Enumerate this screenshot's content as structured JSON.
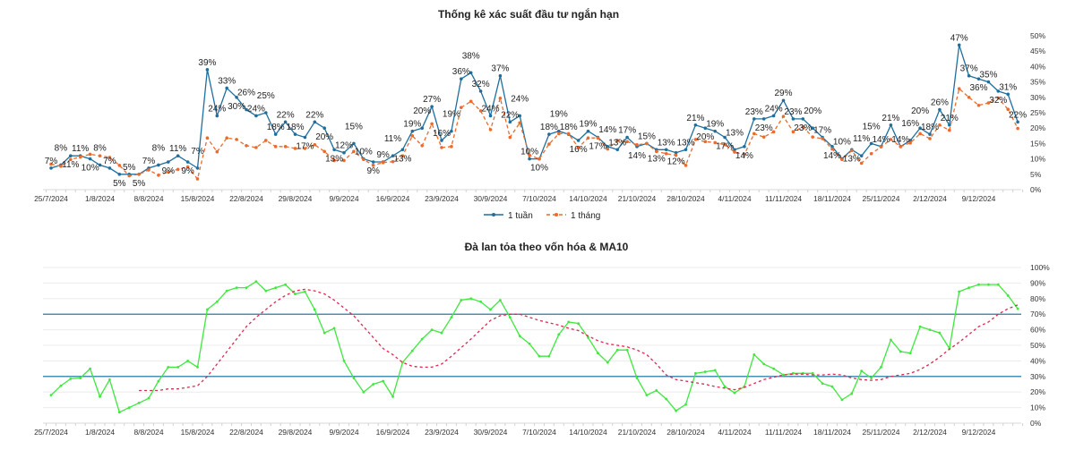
{
  "chart_data": [
    {
      "type": "line",
      "title": "Thống kê xác suất đầu tư ngắn hạn",
      "xlabel": "",
      "ylabel": "",
      "ylim": [
        0,
        50
      ],
      "yticks": [
        "0%",
        "5%",
        "10%",
        "15%",
        "20%",
        "25%",
        "30%",
        "35%",
        "40%",
        "45%",
        "50%"
      ],
      "x_tick_labels": [
        "25/7/2024",
        "1/8/2024",
        "8/8/2024",
        "15/8/2024",
        "22/8/2024",
        "29/8/2024",
        "9/9/2024",
        "16/9/2024",
        "23/9/2024",
        "30/9/2024",
        "7/10/2024",
        "14/10/2024",
        "21/10/2024",
        "28/10/2024",
        "4/11/2024",
        "11/11/2024",
        "18/11/2024",
        "25/11/2024",
        "2/12/2024",
        "9/12/2024"
      ],
      "x_tick_every": 5,
      "legend_position": "bottom",
      "series": [
        {
          "name": "1 tuần",
          "color": "#1f6f9e",
          "data_labels": true,
          "values": [
            7,
            8,
            11,
            11,
            10,
            8,
            7,
            5,
            5,
            5,
            7,
            8,
            9,
            11,
            9,
            7,
            39,
            24,
            33,
            30,
            26,
            24,
            25,
            18,
            22,
            18,
            17,
            22,
            20,
            13,
            12,
            15,
            10,
            9,
            9,
            11,
            13,
            19,
            20,
            27,
            16,
            19,
            36,
            38,
            32,
            24,
            37,
            22,
            24,
            10,
            10,
            18,
            19,
            18,
            16,
            19,
            17,
            14,
            13,
            17,
            14,
            15,
            13,
            13,
            12,
            13,
            21,
            20,
            19,
            17,
            13,
            14,
            23,
            23,
            24,
            29,
            23,
            23,
            20,
            17,
            14,
            10,
            13,
            11,
            15,
            14,
            21,
            14,
            16,
            20,
            18,
            26,
            21,
            47,
            37,
            36,
            35,
            32,
            31,
            22
          ]
        },
        {
          "name": "1 tháng",
          "color": "#ec6a2c",
          "dashed": true,
          "values": [
            8.3,
            7.6,
            9.8,
            10.6,
            11.5,
            11,
            10.5,
            7.9,
            4.5,
            5,
            6.4,
            4.7,
            5.7,
            6.6,
            7.4,
            3.5,
            16.8,
            12.3,
            16.8,
            16.3,
            14.3,
            13.7,
            16,
            14,
            14,
            13.4,
            13.4,
            14.6,
            12.4,
            9.5,
            9.5,
            12.4,
            9.8,
            7.9,
            8.8,
            9.1,
            11,
            17.5,
            14.3,
            21.4,
            13.7,
            14,
            26.7,
            28.7,
            25.6,
            19.5,
            29.7,
            17,
            21.7,
            11.2,
            10,
            14.8,
            18.2,
            18.2,
            13.7,
            16.8,
            16.8,
            13.2,
            16,
            15.6,
            14.6,
            15,
            12.4,
            11.7,
            11.2,
            7.9,
            16.3,
            15.6,
            15.3,
            14.6,
            12.2,
            11.4,
            18.2,
            17.1,
            18.8,
            23.8,
            18.8,
            20.4,
            17.1,
            16.6,
            13.2,
            9.8,
            12.7,
            8.6,
            11.7,
            13.9,
            16.3,
            14,
            15.2,
            18.2,
            16.6,
            21,
            19.3,
            32.8,
            30,
            27.4,
            28.2,
            29.8,
            26.1,
            19.9
          ]
        }
      ]
    },
    {
      "type": "line",
      "title": "Đà lan tỏa theo vốn hóa & MA10",
      "xlabel": "",
      "ylabel": "",
      "ylim": [
        0,
        100
      ],
      "grid": true,
      "yticks": [
        "0%",
        "10%",
        "20%",
        "30%",
        "40%",
        "50%",
        "60%",
        "70%",
        "80%",
        "90%",
        "100%"
      ],
      "x_tick_labels": [
        "25/7/2024",
        "1/8/2024",
        "8/8/2024",
        "15/8/2024",
        "22/8/2024",
        "29/8/2024",
        "9/9/2024",
        "16/9/2024",
        "23/9/2024",
        "30/9/2024",
        "7/10/2024",
        "14/10/2024",
        "21/10/2024",
        "28/10/2024",
        "4/11/2024",
        "11/11/2024",
        "18/11/2024",
        "25/11/2024",
        "2/12/2024",
        "9/12/2024"
      ],
      "x_tick_every": 5,
      "reference_lines": [
        30,
        70
      ],
      "reference_color": "#4a8fb3",
      "series": [
        {
          "name": "Đà lan tỏa",
          "color": "#3ee83e",
          "values": [
            18,
            24,
            28.5,
            29,
            35,
            17,
            28,
            7,
            10,
            13,
            16,
            27,
            36,
            36,
            40,
            36,
            73,
            78,
            85,
            87,
            87,
            91,
            85,
            87,
            89,
            83,
            84.5,
            73,
            58,
            61,
            40,
            29,
            20,
            25,
            27,
            17,
            39,
            46.5,
            54,
            60,
            58,
            68,
            79,
            80,
            78,
            73,
            79,
            68,
            56,
            51,
            43,
            43,
            57,
            65,
            64,
            55,
            45,
            39,
            47,
            47,
            29,
            18,
            21,
            15.5,
            8,
            12,
            32,
            33,
            34,
            23.5,
            19.5,
            23.5,
            44,
            38,
            35,
            31,
            32,
            32,
            32,
            25.5,
            23.5,
            15,
            19,
            33.5,
            29,
            36,
            53.5,
            46,
            45,
            62,
            60,
            58,
            48,
            84.5,
            87,
            89,
            89,
            89,
            82,
            73.5
          ]
        },
        {
          "name": "MA10",
          "color": "#e0264e",
          "dashed": true,
          "start_index": 9,
          "values": [
            21,
            21,
            21,
            22,
            22,
            23,
            24,
            30,
            38,
            46,
            54,
            62,
            68,
            73,
            78,
            82,
            85,
            86,
            85,
            83,
            79,
            74,
            69,
            62,
            55,
            48,
            44,
            39,
            36.5,
            36,
            36,
            38,
            43,
            48.5,
            54,
            60,
            66,
            69,
            70,
            70,
            68,
            66,
            64.5,
            63,
            61,
            59.5,
            56,
            53,
            51,
            50,
            49,
            47,
            44,
            38,
            31,
            28,
            27,
            26,
            25,
            23.5,
            22.5,
            21.5,
            23,
            25.5,
            28,
            29.5,
            31,
            31.5,
            31.5,
            31,
            31,
            31.5,
            31,
            29,
            28,
            27.5,
            28,
            30,
            31,
            32,
            34.5,
            38,
            42.5,
            47.5,
            52,
            57,
            62,
            65,
            70,
            73.5,
            76
          ]
        }
      ]
    }
  ]
}
